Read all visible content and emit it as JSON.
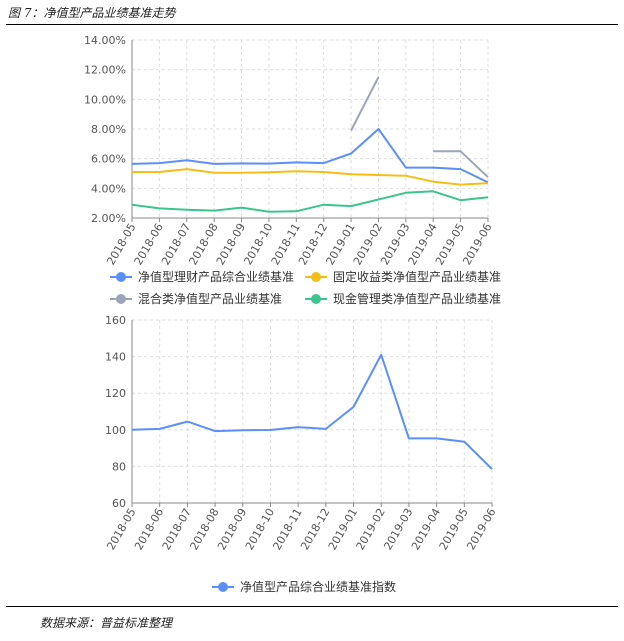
{
  "header": {
    "figure_title": "图 7：净值型产品业绩基准走势"
  },
  "footer": {
    "source": "数据来源：普益标准整理"
  },
  "colors": {
    "blue": "#5b8ff9",
    "yellow": "#f6bd16",
    "gray": "#9aa5bb",
    "green": "#3cc48f",
    "grid": "#dddddd",
    "axis": "#888888"
  },
  "chart_data": [
    {
      "type": "line",
      "title": "",
      "categories": [
        "2018-05",
        "2018-06",
        "2018-07",
        "2018-08",
        "2018-09",
        "2018-10",
        "2018-11",
        "2018-12",
        "2019-01",
        "2019-02",
        "2019-03",
        "2019-04",
        "2019-05",
        "2019-06"
      ],
      "y_tick_labels": [
        "2.00%",
        "4.00%",
        "6.00%",
        "8.00%",
        "10.00%",
        "12.00%",
        "14.00%"
      ],
      "ylim": [
        2,
        14
      ],
      "grid": true,
      "legend_position": "bottom",
      "series": [
        {
          "name": "净值型理财产品综合业绩基准",
          "color": "#5b8ff9",
          "values": [
            5.65,
            5.7,
            5.9,
            5.65,
            5.68,
            5.67,
            5.75,
            5.7,
            6.35,
            8.0,
            5.4,
            5.4,
            5.3,
            4.4
          ]
        },
        {
          "name": "固定收益类净值型产品业绩基准",
          "color": "#f6bd16",
          "values": [
            5.1,
            5.1,
            5.3,
            5.05,
            5.05,
            5.08,
            5.15,
            5.1,
            4.95,
            4.9,
            4.85,
            4.45,
            4.25,
            4.35
          ]
        },
        {
          "name": "混合类净值型产品业绩基准",
          "color": "#9aa5bb",
          "values": [
            null,
            null,
            null,
            null,
            null,
            null,
            null,
            null,
            7.9,
            11.5,
            null,
            6.5,
            6.5,
            4.75
          ]
        },
        {
          "name": "现金管理类净值型产品业绩基准",
          "color": "#3cc48f",
          "values": [
            2.9,
            2.65,
            2.55,
            2.5,
            2.7,
            2.42,
            2.45,
            2.9,
            2.8,
            3.25,
            3.7,
            3.8,
            3.2,
            3.4
          ]
        }
      ]
    },
    {
      "type": "line",
      "title": "",
      "categories": [
        "2018-05",
        "2018-06",
        "2018-07",
        "2018-08",
        "2018-09",
        "2018-10",
        "2018-11",
        "2018-12",
        "2019-01",
        "2019-02",
        "2019-03",
        "2019-04",
        "2019-05",
        "2019-06"
      ],
      "y_tick_labels": [
        "60",
        "80",
        "100",
        "120",
        "140",
        "160"
      ],
      "ylim": [
        60,
        160
      ],
      "grid": true,
      "legend_position": "bottom",
      "series": [
        {
          "name": "净值型产品综合业绩基准指数",
          "color": "#5b8ff9",
          "values": [
            100,
            100.5,
            104.5,
            99.3,
            99.8,
            99.9,
            101.5,
            100.5,
            112.5,
            141,
            95.3,
            95.3,
            93.5,
            78.5
          ]
        }
      ]
    }
  ]
}
